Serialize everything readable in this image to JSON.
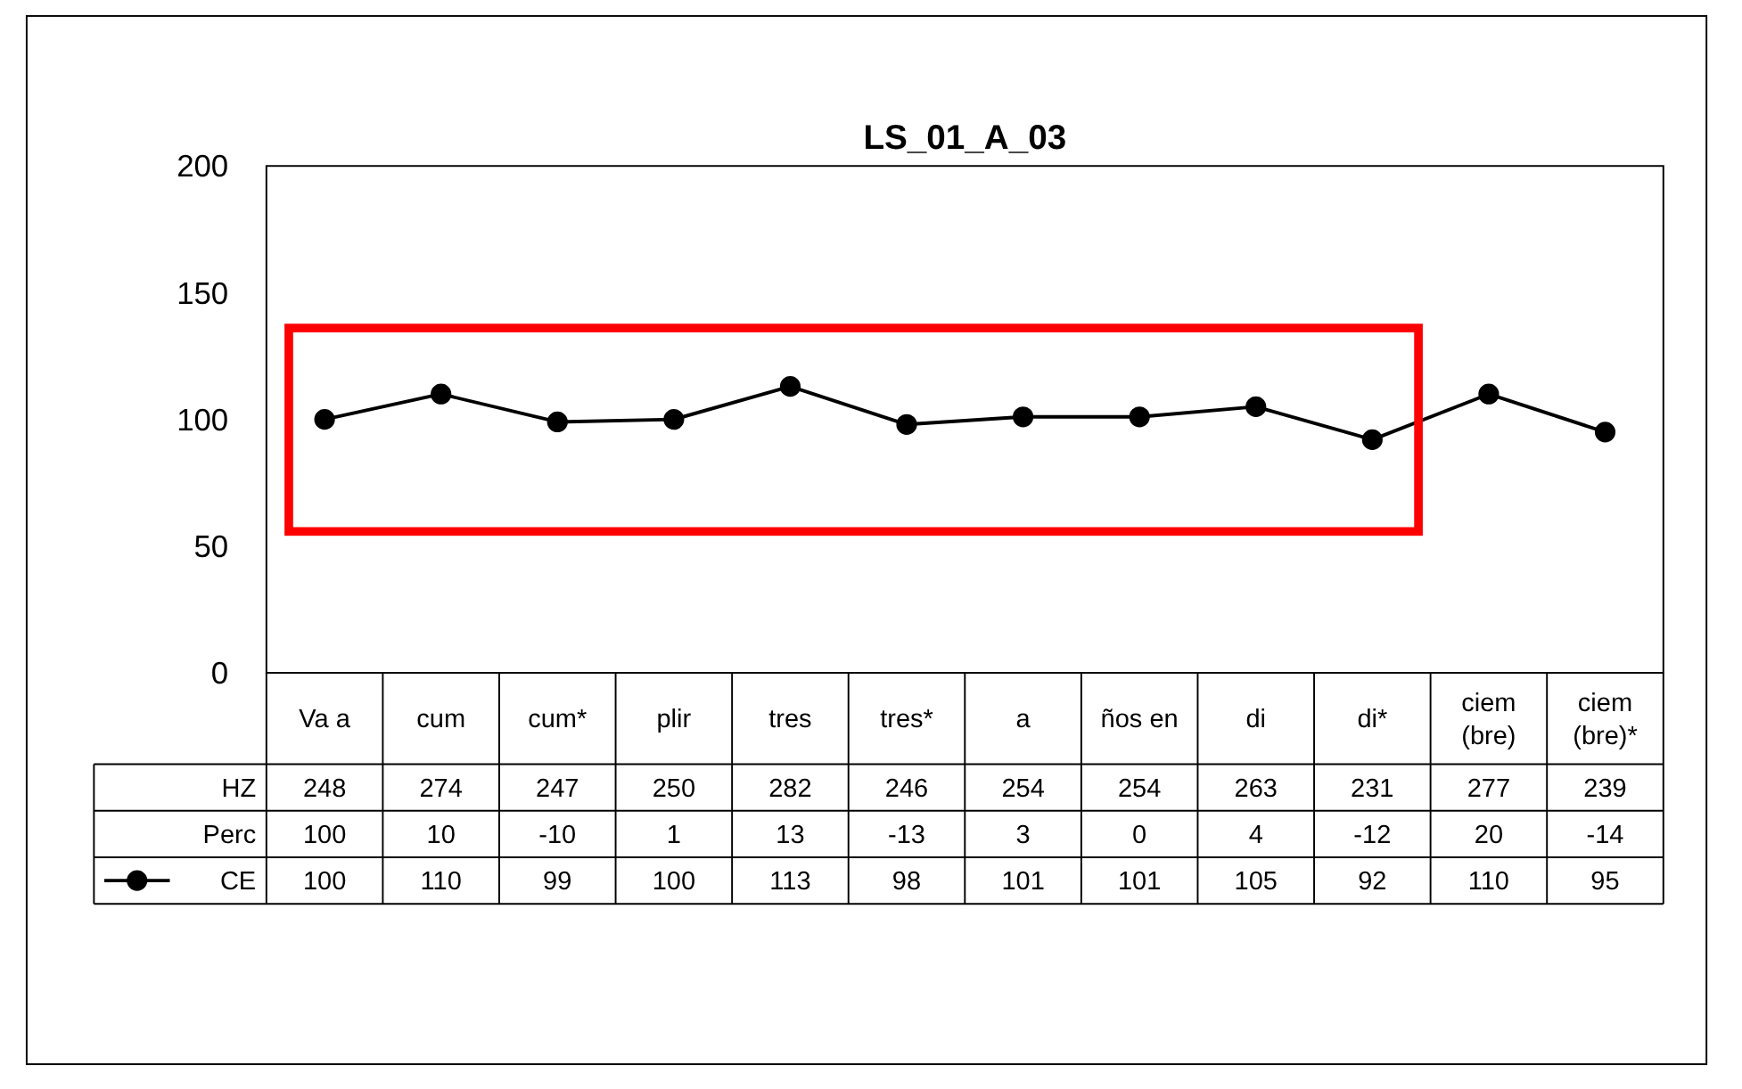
{
  "chart_data": {
    "type": "line",
    "title": "LS_01_A_03",
    "categories": [
      "Va a",
      "cum",
      "cum*",
      "plir",
      "tres",
      "tres*",
      "a",
      "ños en",
      "di",
      "di*",
      "ciem (bre)",
      "ciem (bre)*"
    ],
    "series": [
      {
        "name": "HZ",
        "type": "other",
        "values": [
          null,
          null,
          null,
          null,
          null,
          null,
          null,
          null,
          null,
          null,
          null,
          null
        ],
        "value_labels": [
          "248",
          "274",
          "247",
          "250",
          "282",
          "246",
          "254",
          "254",
          "263",
          "231",
          "277",
          "239"
        ]
      },
      {
        "name": "Perc",
        "type": "other",
        "values": [
          null,
          null,
          null,
          null,
          null,
          null,
          null,
          null,
          null,
          null,
          null,
          null
        ],
        "value_labels": [
          "100",
          "10",
          "-10",
          "1",
          "13",
          "-13",
          "3",
          "0",
          "4",
          "-12",
          "20",
          "-14"
        ]
      },
      {
        "name": "CE",
        "color": "#000000",
        "values": [
          100,
          110,
          99,
          100,
          113,
          98,
          101,
          101,
          105,
          92,
          110,
          95
        ]
      }
    ],
    "ylim": [
      0,
      200
    ],
    "yticks": [
      0,
      50,
      100,
      150,
      200
    ],
    "grid": false,
    "marker": "circle",
    "line_style": "solid",
    "data_labels": true,
    "legend": "bottom left"
  }
}
